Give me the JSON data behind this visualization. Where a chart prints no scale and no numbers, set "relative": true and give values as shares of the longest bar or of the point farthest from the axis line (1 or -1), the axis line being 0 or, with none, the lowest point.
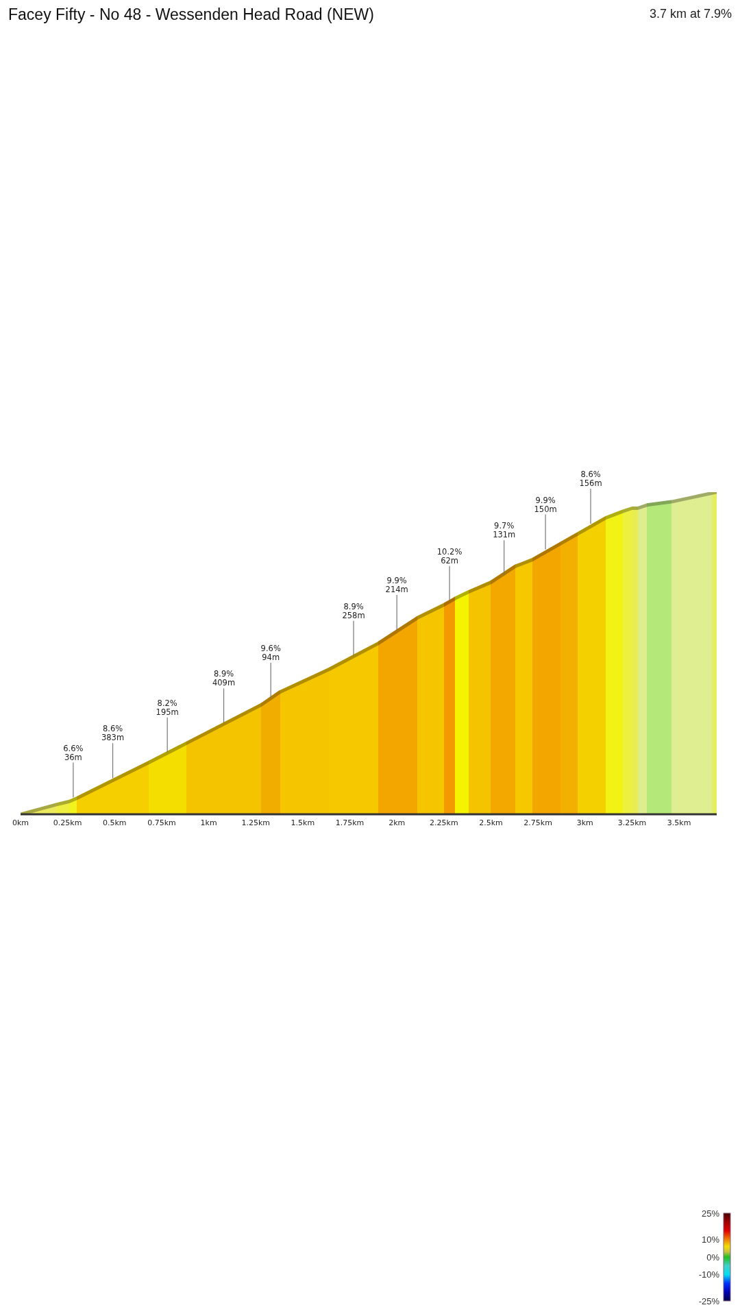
{
  "chart_data": {
    "type": "area",
    "title": "Facey Fifty - No 48 - Wessenden Head Road (NEW)",
    "subtitle": "3.7 km at 7.9%",
    "relative": true,
    "x": [
      0,
      0.19,
      0.26,
      0.3,
      0.68,
      0.88,
      1.28,
      1.38,
      1.64,
      1.9,
      2.11,
      2.25,
      2.31,
      2.38,
      2.5,
      2.63,
      2.72,
      2.87,
      2.96,
      3.11,
      3.2,
      3.25,
      3.28,
      3.33,
      3.46,
      3.7
    ],
    "values": [
      0,
      0.03,
      0.04,
      0.05,
      0.16,
      0.22,
      0.34,
      0.38,
      0.45,
      0.53,
      0.61,
      0.65,
      0.67,
      0.69,
      0.72,
      0.77,
      0.79,
      0.84,
      0.87,
      0.92,
      0.94,
      0.95,
      0.95,
      0.96,
      0.97,
      1
    ],
    "colors": [
      "#eaea5c",
      "#eeee40",
      "#f2f21e",
      "#f5cf00",
      "#f4de00",
      "#f5c400",
      "#f2ae00",
      "#f5c500",
      "#f5c800",
      "#f3a500",
      "#f5c600",
      "#f39a00",
      "#f4f400",
      "#f5c400",
      "#f3a800",
      "#f5c800",
      "#f3a500",
      "#f3b000",
      "#f5d000",
      "#f2f214",
      "#eef040",
      "#e8ee52",
      "#dfee8c",
      "#b4e878",
      "#dfee90",
      "#e4ee62"
    ],
    "xlim": [
      0,
      3.7
    ],
    "xticks": [
      {
        "value": 0,
        "label": "0km"
      },
      {
        "value": 0.25,
        "label": "0.25km"
      },
      {
        "value": 0.5,
        "label": "0.5km"
      },
      {
        "value": 0.75,
        "label": "0.75km"
      },
      {
        "value": 1,
        "label": "1km"
      },
      {
        "value": 1.25,
        "label": "1.25km"
      },
      {
        "value": 1.5,
        "label": "1.5km"
      },
      {
        "value": 1.75,
        "label": "1.75km"
      },
      {
        "value": 2,
        "label": "2km"
      },
      {
        "value": 2.25,
        "label": "2.25km"
      },
      {
        "value": 2.5,
        "label": "2.5km"
      },
      {
        "value": 2.75,
        "label": "2.75km"
      },
      {
        "value": 3,
        "label": "3km"
      },
      {
        "value": 3.25,
        "label": "3.25km"
      },
      {
        "value": 3.5,
        "label": "3.5km"
      }
    ],
    "annotations": [
      {
        "text": "6.6%\n36m",
        "x": 0.28,
        "y": 0.05
      },
      {
        "text": "8.6%\n383m",
        "x": 0.49,
        "y": 0.11
      },
      {
        "text": "8.2%\n195m",
        "x": 0.78,
        "y": 0.19
      },
      {
        "text": "8.9%\n409m",
        "x": 1.08,
        "y": 0.28
      },
      {
        "text": "9.6%\n94m",
        "x": 1.33,
        "y": 0.36
      },
      {
        "text": "8.9%\n258m",
        "x": 1.77,
        "y": 0.49
      },
      {
        "text": "9.9%\n214m",
        "x": 2.0,
        "y": 0.57
      },
      {
        "text": "10.2%\n62m",
        "x": 2.28,
        "y": 0.66
      },
      {
        "text": "9.7%\n131m",
        "x": 2.57,
        "y": 0.74
      },
      {
        "text": "9.9%\n150m",
        "x": 2.79,
        "y": 0.82
      },
      {
        "text": "8.6%\n156m",
        "x": 3.03,
        "y": 0.9
      }
    ],
    "clim": [
      -25,
      25
    ],
    "cticks": [
      {
        "value": -25,
        "label": "-25%"
      },
      {
        "value": -10,
        "label": "-10%"
      },
      {
        "value": 0,
        "label": "0%"
      },
      {
        "value": 10,
        "label": "10%"
      },
      {
        "value": 25,
        "label": "25%"
      }
    ],
    "legend": false,
    "grid": false
  }
}
